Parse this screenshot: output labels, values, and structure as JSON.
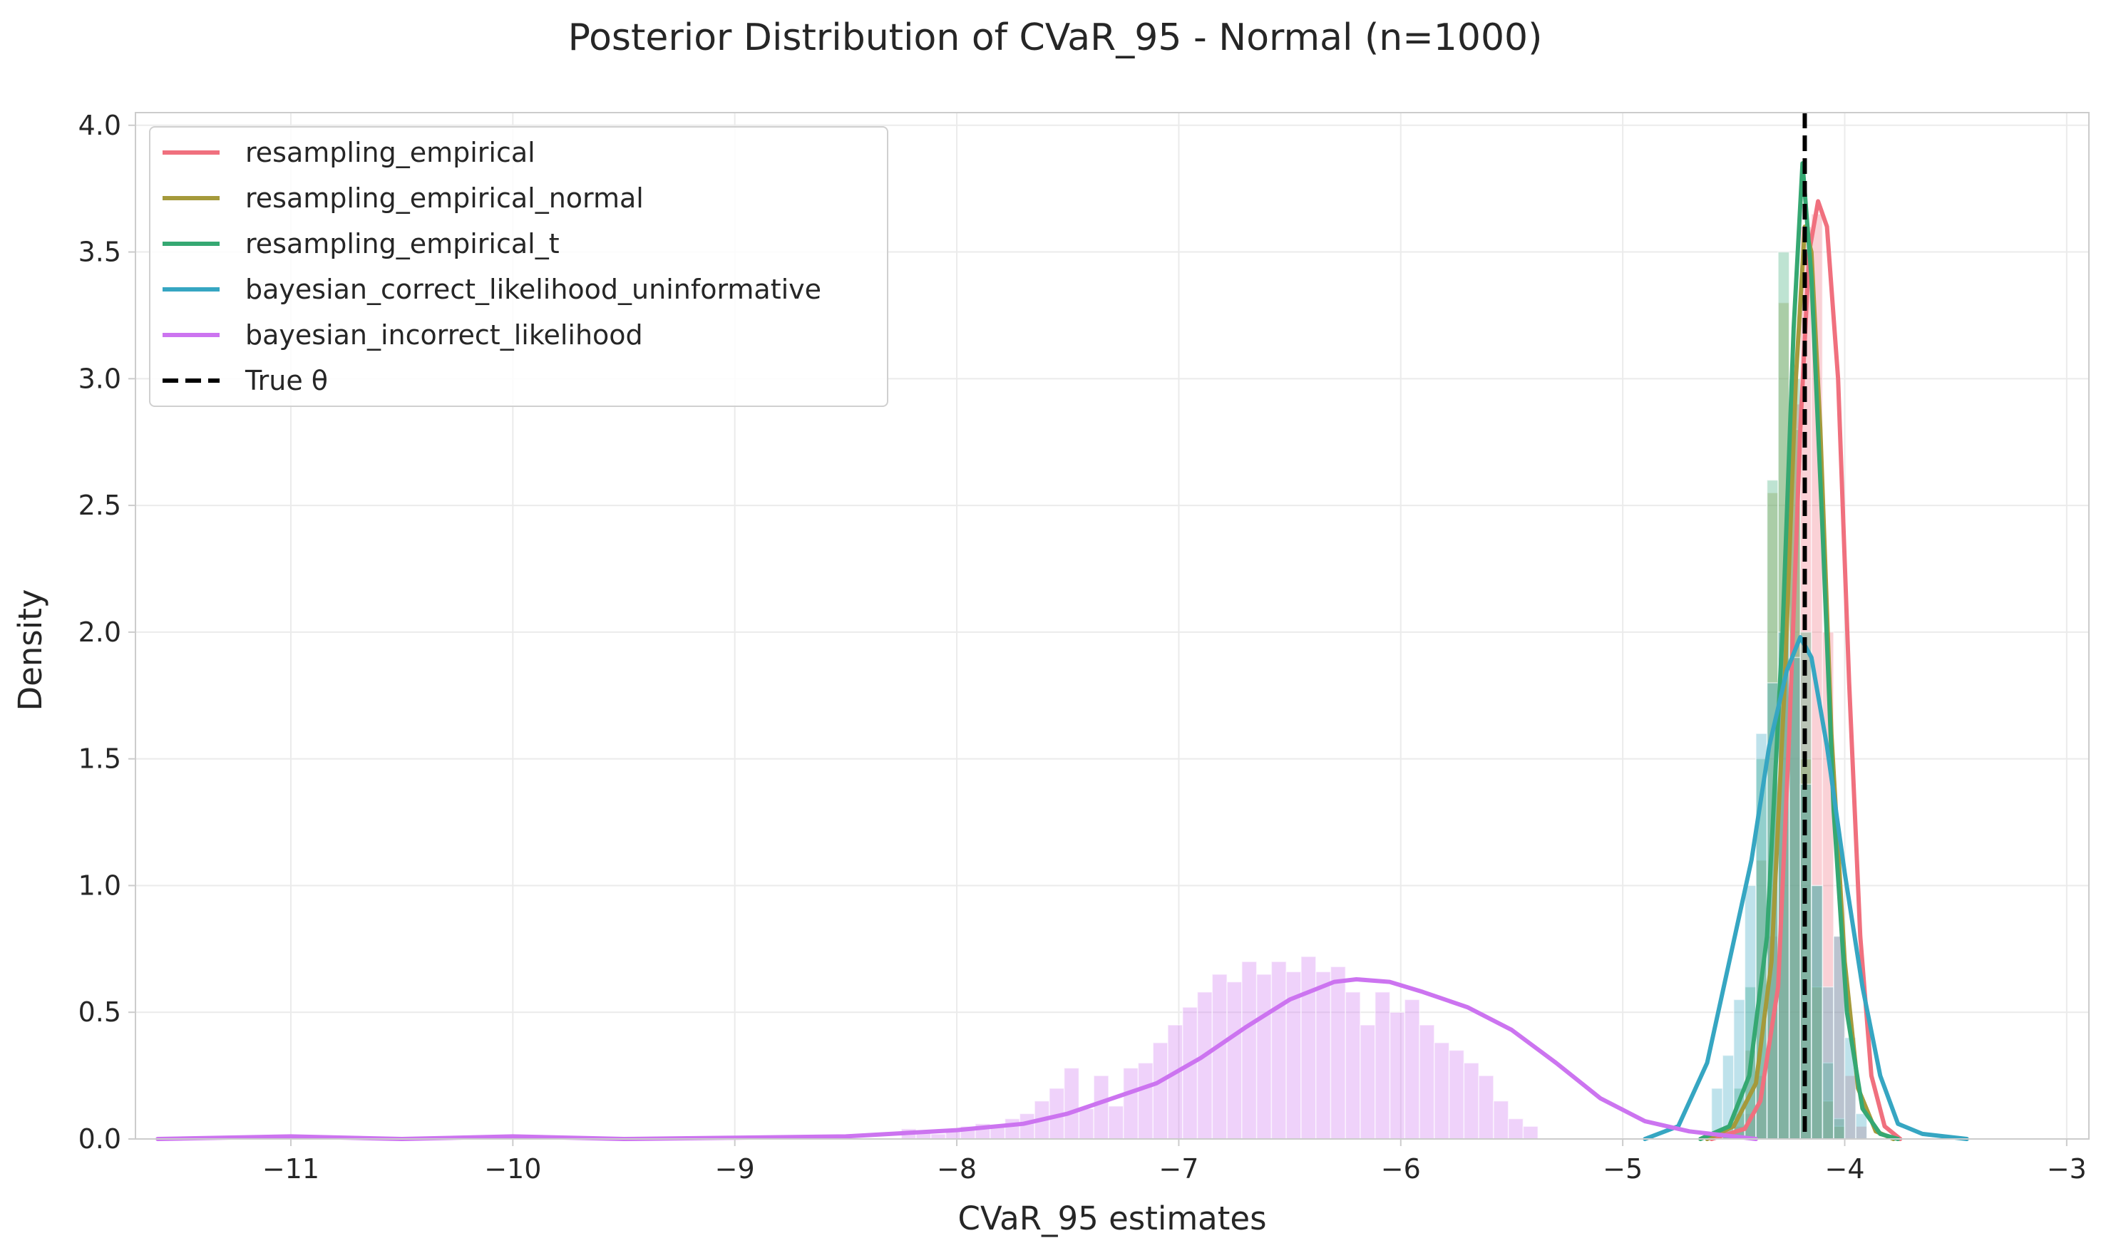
{
  "chart_data": {
    "type": "area",
    "title": "Posterior Distribution of CVaR_95 - Normal (n=1000)",
    "xlabel": "CVaR_95 estimates",
    "ylabel": "Density",
    "xlim": [
      -11.7,
      -2.9
    ],
    "ylim": [
      0,
      4.05
    ],
    "x_ticks": [
      -11,
      -10,
      -9,
      -8,
      -7,
      -6,
      -5,
      -4,
      -3
    ],
    "x_tick_labels": [
      "−11",
      "−10",
      "−9",
      "−8",
      "−7",
      "−6",
      "−5",
      "−4",
      "−3"
    ],
    "y_ticks": [
      0,
      0.5,
      1,
      1.5,
      2,
      2.5,
      3,
      3.5,
      4
    ],
    "y_tick_labels": [
      "0.0",
      "0.5",
      "1.0",
      "1.5",
      "2.0",
      "2.5",
      "3.0",
      "3.5",
      "4.0"
    ],
    "grid": true,
    "legend_position": "top-left",
    "true_theta": -4.18,
    "true_theta_label": "True θ",
    "series": [
      {
        "name": "resampling_empirical",
        "color": "#f0707e",
        "kde": [
          [
            -4.6,
            0.0
          ],
          [
            -4.45,
            0.04
          ],
          [
            -4.38,
            0.15
          ],
          [
            -4.3,
            0.6
          ],
          [
            -4.25,
            1.6
          ],
          [
            -4.2,
            2.8
          ],
          [
            -4.16,
            3.5
          ],
          [
            -4.12,
            3.7
          ],
          [
            -4.08,
            3.6
          ],
          [
            -4.03,
            3.0
          ],
          [
            -3.98,
            1.8
          ],
          [
            -3.93,
            0.8
          ],
          [
            -3.88,
            0.25
          ],
          [
            -3.82,
            0.05
          ],
          [
            -3.75,
            0.0
          ]
        ],
        "hist": {
          "start": -4.6,
          "width": 0.05,
          "heights": [
            0,
            0.02,
            0.05,
            0.1,
            0.25,
            0.8,
            1.9,
            2.9,
            3.6,
            3.65,
            2.0,
            0.8,
            0.25,
            0.05,
            0
          ]
        }
      },
      {
        "name": "resampling_empirical_normal",
        "color": "#a59a3b",
        "kde": [
          [
            -4.62,
            0.0
          ],
          [
            -4.5,
            0.05
          ],
          [
            -4.4,
            0.22
          ],
          [
            -4.33,
            0.7
          ],
          [
            -4.27,
            1.8
          ],
          [
            -4.22,
            3.0
          ],
          [
            -4.18,
            3.6
          ],
          [
            -4.15,
            3.5
          ],
          [
            -4.11,
            2.8
          ],
          [
            -4.06,
            1.6
          ],
          [
            -4.0,
            0.7
          ],
          [
            -3.94,
            0.2
          ],
          [
            -3.86,
            0.03
          ],
          [
            -3.78,
            0.0
          ]
        ],
        "hist": {
          "start": -4.6,
          "width": 0.05,
          "heights": [
            0,
            0.03,
            0.1,
            0.35,
            1.1,
            2.55,
            3.3,
            2.8,
            1.5,
            0.6,
            0.15,
            0.05,
            0
          ]
        }
      },
      {
        "name": "resampling_empirical_t",
        "color": "#35a872",
        "kde": [
          [
            -4.65,
            0.0
          ],
          [
            -4.52,
            0.05
          ],
          [
            -4.43,
            0.25
          ],
          [
            -4.35,
            0.8
          ],
          [
            -4.28,
            2.0
          ],
          [
            -4.23,
            3.2
          ],
          [
            -4.19,
            3.85
          ],
          [
            -4.15,
            3.4
          ],
          [
            -4.1,
            2.4
          ],
          [
            -4.05,
            1.3
          ],
          [
            -3.99,
            0.5
          ],
          [
            -3.92,
            0.12
          ],
          [
            -3.84,
            0.02
          ],
          [
            -3.76,
            0.0
          ]
        ],
        "hist": {
          "start": -4.6,
          "width": 0.05,
          "heights": [
            0,
            0.05,
            0.2,
            0.6,
            1.5,
            2.6,
            3.5,
            3.0,
            2.0,
            1.0,
            0.3,
            0.08,
            0
          ]
        }
      },
      {
        "name": "bayesian_correct_likelihood_uninformative",
        "color": "#36a6c2",
        "kde": [
          [
            -4.9,
            0.0
          ],
          [
            -4.75,
            0.05
          ],
          [
            -4.62,
            0.3
          ],
          [
            -4.52,
            0.7
          ],
          [
            -4.42,
            1.1
          ],
          [
            -4.34,
            1.55
          ],
          [
            -4.26,
            1.85
          ],
          [
            -4.2,
            1.98
          ],
          [
            -4.15,
            1.9
          ],
          [
            -4.08,
            1.55
          ],
          [
            -4.0,
            1.05
          ],
          [
            -3.92,
            0.6
          ],
          [
            -3.84,
            0.25
          ],
          [
            -3.76,
            0.06
          ],
          [
            -3.65,
            0.02
          ],
          [
            -3.45,
            0.0
          ]
        ],
        "hist": {
          "start": -4.6,
          "width": 0.05,
          "heights": [
            0.2,
            0.33,
            0.55,
            1.0,
            1.6,
            1.8,
            2.0,
            1.9,
            1.4,
            1.0,
            0.6,
            0.8,
            0.4,
            0.1
          ]
        }
      },
      {
        "name": "bayesian_incorrect_likelihood",
        "color": "#cc74f0",
        "kde": [
          [
            -11.6,
            0.0
          ],
          [
            -11.0,
            0.01
          ],
          [
            -10.5,
            0.0
          ],
          [
            -10.0,
            0.01
          ],
          [
            -9.5,
            0.0
          ],
          [
            -9.0,
            0.005
          ],
          [
            -8.5,
            0.01
          ],
          [
            -8.0,
            0.035
          ],
          [
            -7.7,
            0.06
          ],
          [
            -7.5,
            0.1
          ],
          [
            -7.3,
            0.16
          ],
          [
            -7.1,
            0.22
          ],
          [
            -6.9,
            0.32
          ],
          [
            -6.7,
            0.44
          ],
          [
            -6.5,
            0.55
          ],
          [
            -6.3,
            0.62
          ],
          [
            -6.2,
            0.63
          ],
          [
            -6.05,
            0.62
          ],
          [
            -5.9,
            0.58
          ],
          [
            -5.7,
            0.52
          ],
          [
            -5.5,
            0.43
          ],
          [
            -5.3,
            0.3
          ],
          [
            -5.1,
            0.16
          ],
          [
            -4.9,
            0.07
          ],
          [
            -4.7,
            0.03
          ],
          [
            -4.4,
            0.0
          ]
        ],
        "hist": {
          "start": -8.25,
          "width": 0.0667,
          "heights": [
            0.04,
            0.03,
            0.02,
            0.03,
            0.05,
            0.06,
            0.05,
            0.08,
            0.1,
            0.15,
            0.2,
            0.28,
            0.12,
            0.25,
            0.13,
            0.28,
            0.3,
            0.38,
            0.45,
            0.52,
            0.58,
            0.65,
            0.62,
            0.7,
            0.65,
            0.7,
            0.66,
            0.72,
            0.66,
            0.68,
            0.58,
            0.45,
            0.58,
            0.5,
            0.55,
            0.45,
            0.38,
            0.35,
            0.3,
            0.25,
            0.15,
            0.08,
            0.05
          ]
        }
      }
    ]
  }
}
